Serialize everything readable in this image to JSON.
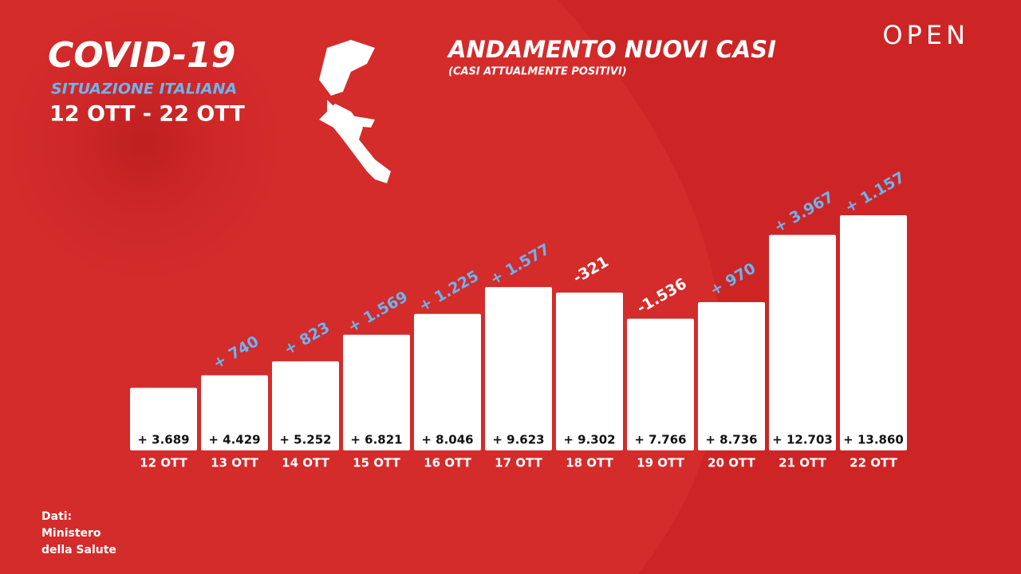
{
  "chart_data": {
    "type": "bar",
    "header": {
      "title": "COVID-19",
      "subtitle": "SITUAZIONE ITALIANA",
      "period": "12 OTT - 22 OTT"
    },
    "title": "ANDAMENTO NUOVI CASI",
    "subtitle": "(CASI ATTUALMENTE POSITIVI)",
    "brand": "OPEN",
    "source": [
      "Dati:",
      "Ministero",
      "della Salute"
    ],
    "categories": [
      "12 OTT",
      "13 OTT",
      "14 OTT",
      "15 OTT",
      "16 OTT",
      "17 OTT",
      "18 OTT",
      "19 OTT",
      "20 OTT",
      "21 OTT",
      "22 OTT"
    ],
    "values": [
      3689,
      4429,
      5252,
      6821,
      8046,
      9623,
      9302,
      7766,
      8736,
      12703,
      13860
    ],
    "value_labels": [
      "+ 3.689",
      "+ 4.429",
      "+ 5.252",
      "+ 6.821",
      "+ 8.046",
      "+ 9.623",
      "+ 9.302",
      "+ 7.766",
      "+ 8.736",
      "+ 12.703",
      "+ 13.860"
    ],
    "color": "#ffffff",
    "changes": {
      "values": [
        null,
        740,
        823,
        1569,
        1225,
        1577,
        -321,
        -1536,
        970,
        3967,
        1157
      ],
      "value_labels": [
        null,
        "+ 740",
        "+ 823",
        "+ 1.569",
        "+ 1.225",
        "+ 1.577",
        "-321",
        "-1.536",
        "+ 970",
        "+ 3.967",
        "+ 1.157"
      ],
      "positive_color": "#6cb4f2",
      "negative_color": "#ffffff"
    }
  }
}
